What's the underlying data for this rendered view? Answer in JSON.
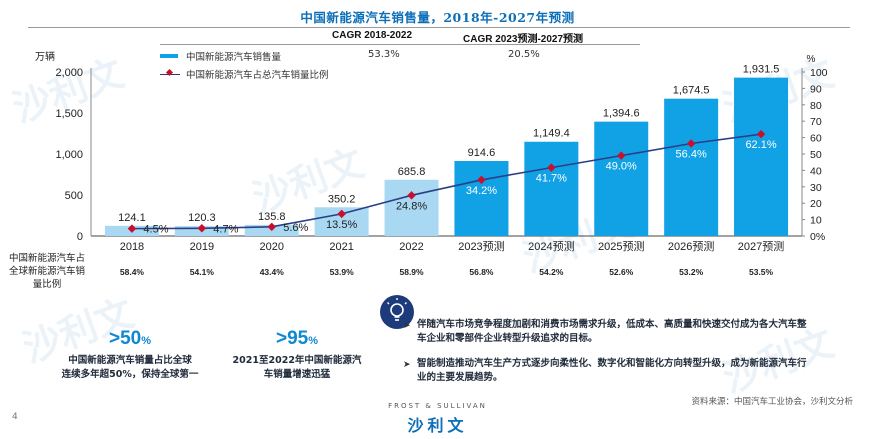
{
  "title": "中国新能源汽车销售量，2018年-2027年预测",
  "header": {
    "cagr1_label": "CAGR 2018-2022",
    "cagr2_label": "CAGR 2023预测-2027预测",
    "series1_name": "中国新能源汽车销售量",
    "series1_cagr1": "53.3%",
    "series1_cagr2": "20.5%",
    "series2_name": "中国新能源汽车占总汽车销量比例"
  },
  "chart_data": {
    "type": "bar",
    "categories": [
      "2018",
      "2019",
      "2020",
      "2021",
      "2022",
      "2023预测",
      "2024预测",
      "2025预测",
      "2026预测",
      "2027预测"
    ],
    "y_left": {
      "unit": "万辆",
      "ylim": [
        0,
        2000
      ],
      "ticks": [
        "0",
        "500",
        "1,000",
        "1,500",
        "2,000"
      ]
    },
    "y_right": {
      "unit": "%",
      "ylim": [
        0,
        100
      ],
      "ticks": [
        "0%",
        "10",
        "20",
        "30",
        "40",
        "50",
        "60",
        "70",
        "80",
        "90",
        "100"
      ]
    },
    "series": [
      {
        "name": "中国新能源汽车销售量",
        "values": [
          124.1,
          120.3,
          135.8,
          350.2,
          685.8,
          914.6,
          1149.4,
          1394.6,
          1674.5,
          1931.5
        ],
        "labels": [
          "124.1",
          "120.3",
          "135.8",
          "350.2",
          "685.8",
          "914.6",
          "1,149.4",
          "1,394.6",
          "1,674.5",
          "1,931.5"
        ]
      },
      {
        "name": "中国新能源汽车占总汽车销量比例",
        "values": [
          4.5,
          4.7,
          5.6,
          13.5,
          24.8,
          34.2,
          41.7,
          49.0,
          56.4,
          62.1
        ],
        "labels": [
          "4.5%",
          "4.7%",
          "5.6%",
          "13.5%",
          "24.8%",
          "34.2%",
          "41.7%",
          "49.0%",
          "56.4%",
          "62.1%"
        ]
      }
    ],
    "colors": {
      "actual_bar": "#a9d8f2",
      "forecast_bar": "#11a2e6",
      "line": "#2b3f86",
      "marker": "#c8102e"
    },
    "grid": false
  },
  "share_row": {
    "label": "中国新能源汽车占全球新能源汽车销量比例",
    "values": [
      "58.4%",
      "54.1%",
      "43.4%",
      "53.9%",
      "58.9%",
      "56.8%",
      "54.2%",
      "52.6%",
      "53.2%",
      "53.5%"
    ]
  },
  "stats": [
    {
      "big": ">50",
      "pct": "%",
      "desc1": "中国新能源汽车销量占比全球",
      "desc2": "连续多年超50%，保持全球第一"
    },
    {
      "big": ">95",
      "pct": "%",
      "desc1": "2021至2022年中国新能源汽",
      "desc2": "车销量增速迅猛"
    }
  ],
  "bullets": [
    "伴随汽车市场竞争程度加剧和消费市场需求升级，低成本、高质量和快速交付成为各大汽车整车企业和零部件企业转型升级追求的目标。",
    "智能制造推动汽车生产方式逐步向柔性化、数字化和智能化方向转型升级，成为新能源汽车行业的主要发展趋势。"
  ],
  "source": "资料来源：中国汽车工业协会，沙利文分析",
  "page_number": "4",
  "footer": {
    "brand_small": "FROST & SULLIVAN",
    "brand_logo": "沙利文"
  },
  "icons": {
    "bulb": "lightbulb-icon"
  }
}
